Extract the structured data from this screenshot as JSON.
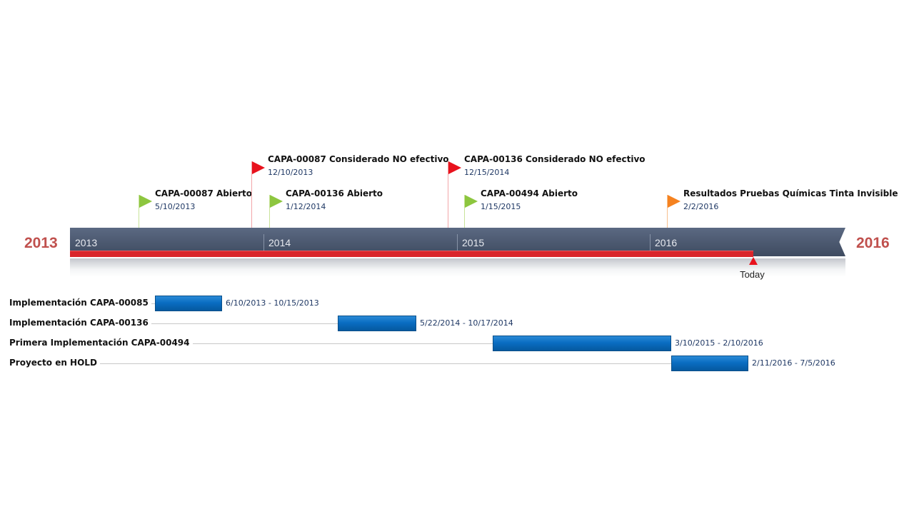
{
  "timeline": {
    "start_label": "2013",
    "end_label": "2016",
    "band_years": [
      "2013",
      "2014",
      "2015",
      "2016"
    ],
    "today_label": "Today",
    "progress_color": "#d9252b",
    "band_color": "#4b586f"
  },
  "chart_data": {
    "type": "timeline",
    "x_range": [
      "2013-01-01",
      "2016-12-31"
    ],
    "today": "2016-07-15",
    "milestones": [
      {
        "title": "CAPA-00087 Abierto",
        "date": "5/10/2013",
        "iso": "2013-05-10",
        "flag": "green",
        "row": "low"
      },
      {
        "title": "CAPA-00087 Considerado NO efectivo",
        "date": "12/10/2013",
        "iso": "2013-12-10",
        "flag": "red",
        "row": "high"
      },
      {
        "title": "CAPA-00136 Abierto",
        "date": "1/12/2014",
        "iso": "2014-01-12",
        "flag": "green",
        "row": "low"
      },
      {
        "title": "CAPA-00136 Considerado NO efectivo",
        "date": "12/15/2014",
        "iso": "2014-12-15",
        "flag": "red",
        "row": "high"
      },
      {
        "title": "CAPA-00494 Abierto",
        "date": "1/15/2015",
        "iso": "2015-01-15",
        "flag": "green",
        "row": "low"
      },
      {
        "title": "Resultados Pruebas Químicas Tinta Invisible",
        "date": "2/2/2016",
        "iso": "2016-02-02",
        "flag": "orange",
        "row": "low"
      }
    ],
    "tasks": [
      {
        "label": "Implementación CAPA-00085",
        "range": "6/10/2013 - 10/15/2013",
        "start": "2013-06-10",
        "end": "2013-10-15"
      },
      {
        "label": "Implementación CAPA-00136",
        "range": "5/22/2014 - 10/17/2014",
        "start": "2014-05-22",
        "end": "2014-10-17"
      },
      {
        "label": "Primera Implementación CAPA-00494",
        "range": "3/10/2015 - 2/10/2016",
        "start": "2015-03-10",
        "end": "2016-02-10"
      },
      {
        "label": "Proyecto en HOLD",
        "range": "2/11/2016 - 7/5/2016",
        "start": "2016-02-11",
        "end": "2016-07-05"
      }
    ],
    "flag_colors": {
      "green": "#8dc63f",
      "red": "#e8121d",
      "orange": "#f58220"
    }
  }
}
